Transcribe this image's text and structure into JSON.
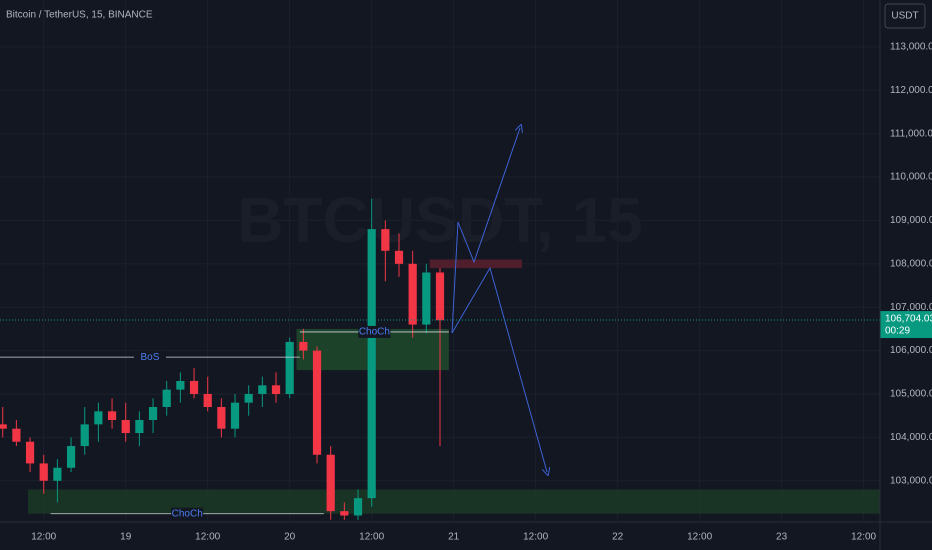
{
  "chart_data": {
    "type": "candlestick",
    "title": "Bitcoin / TetherUS, 15, BINANCE",
    "watermark": "BTCUSDT, 15",
    "currency_button": "USDT",
    "up_color": "#089981",
    "down_color": "#f23645",
    "x": [
      6,
      8,
      10,
      12,
      14,
      16,
      18,
      20,
      22,
      24,
      26,
      28,
      30,
      32,
      34,
      36,
      38,
      40,
      42,
      44,
      46,
      48,
      50,
      52,
      54,
      56,
      58,
      60,
      62,
      64,
      66,
      68,
      70
    ],
    "open": [
      104300,
      104200,
      103900,
      103400,
      103000,
      103300,
      103800,
      104300,
      104600,
      104400,
      104100,
      104400,
      104700,
      105100,
      105300,
      105000,
      104700,
      104200,
      104800,
      105000,
      105200,
      105000,
      106200,
      106000,
      103600,
      102300,
      102200,
      102600,
      108800,
      108300,
      108000,
      106600,
      107800
    ],
    "high": [
      104700,
      104400,
      104000,
      103600,
      103500,
      104000,
      104700,
      104800,
      104900,
      104800,
      104600,
      104900,
      105300,
      105500,
      105600,
      105400,
      104900,
      105000,
      105200,
      105400,
      105500,
      106300,
      106500,
      106100,
      103800,
      102500,
      102800,
      109500,
      109000,
      108700,
      108300,
      108000,
      107900
    ],
    "low": [
      104000,
      103800,
      103200,
      102700,
      102500,
      103200,
      103600,
      103900,
      104200,
      103900,
      103800,
      104100,
      104500,
      104800,
      104900,
      104600,
      104000,
      104000,
      104500,
      104700,
      104800,
      104900,
      105800,
      103400,
      102100,
      102100,
      102100,
      102400,
      107600,
      107700,
      106300,
      106400,
      103800
    ],
    "close": [
      104200,
      103900,
      103400,
      103000,
      103300,
      103800,
      104300,
      104600,
      104400,
      104100,
      104400,
      104700,
      105100,
      105300,
      105000,
      104700,
      104200,
      104800,
      105000,
      105200,
      105000,
      106200,
      106000,
      103600,
      102300,
      102200,
      102600,
      108800,
      108300,
      108000,
      106600,
      107800,
      106700
    ],
    "xlim": [
      5.6,
      134.4
    ],
    "xticks": [
      {
        "value": 12,
        "label": "12:00"
      },
      {
        "value": 24,
        "label": "19"
      },
      {
        "value": 36,
        "label": "12:00"
      },
      {
        "value": 48,
        "label": "20"
      },
      {
        "value": 60,
        "label": "12:00"
      },
      {
        "value": 72,
        "label": "21"
      },
      {
        "value": 84,
        "label": "12:00"
      },
      {
        "value": 96,
        "label": "22"
      },
      {
        "value": 108,
        "label": "12:00"
      },
      {
        "value": 120,
        "label": "23"
      },
      {
        "value": 132,
        "label": "12:00"
      }
    ],
    "ylim": [
      102050,
      114080
    ],
    "yticks": [
      {
        "value": 103000,
        "label": "103,000.00"
      },
      {
        "value": 104000,
        "label": "104,000.00"
      },
      {
        "value": 105000,
        "label": "105,000.00"
      },
      {
        "value": 106000,
        "label": "106,000.00"
      },
      {
        "value": 107000,
        "label": "107,000.00"
      },
      {
        "value": 108000,
        "label": "108,000.00"
      },
      {
        "value": 109000,
        "label": "109,000.00"
      },
      {
        "value": 110000,
        "label": "110,000.00"
      },
      {
        "value": 111000,
        "label": "111,000.00"
      },
      {
        "value": 112000,
        "label": "112,000.00"
      },
      {
        "value": 113000,
        "label": "113,000.00"
      }
    ],
    "grid": true,
    "last_price": 106704.03,
    "last_price_label": "106,704.03",
    "countdown": "00:29",
    "zones": [
      {
        "x": [
          49,
          71.3
        ],
        "y": [
          105550,
          106500
        ],
        "color": "#1f4a2c"
      },
      {
        "x": [
          9.7,
          134.4
        ],
        "y": [
          102240,
          102800
        ],
        "color": "#1b3a26"
      },
      {
        "x": [
          68.5,
          82
        ],
        "y": [
          107900,
          108100
        ],
        "color": "#5a1f2e"
      }
    ],
    "levels": [
      {
        "label": "BoS",
        "price": 105850,
        "x": [
          5.6,
          49.5
        ]
      },
      {
        "label": "ChoCh",
        "price": 106430,
        "x": [
          49.5,
          71.3
        ]
      },
      {
        "label": "ChoCh",
        "price": 102240,
        "x": [
          13,
          53
        ]
      }
    ]
  }
}
